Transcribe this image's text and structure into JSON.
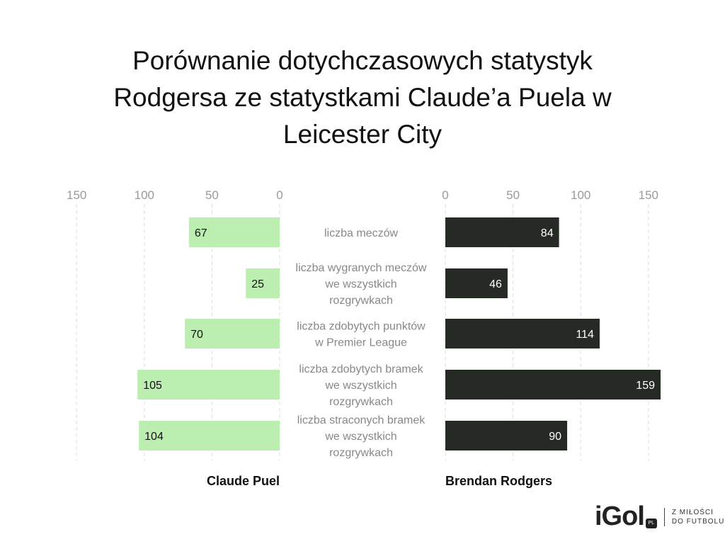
{
  "title": "Porównanie dotychczasowych statystyk Rodgersa ze statystkami Claude’a Puela w Leicester City",
  "logo": {
    "brand": "iGol",
    "suffix": "PL",
    "tagline_1": "Z MIŁOŚCI",
    "tagline_2": "DO FUTBOLU"
  },
  "chart_data": {
    "type": "bar",
    "title": "Porównanie dotychczasowych statystyk Rodgersa ze statystkami Claude’a Puela w Leicester City",
    "categories": [
      [
        "liczba meczów"
      ],
      [
        "liczba wygranych meczów",
        "we wszystkich",
        "rozgrywkach"
      ],
      [
        "liczba zdobytych punktów",
        "w Premier League"
      ],
      [
        "liczba zdobytych bramek",
        "we wszystkich",
        "rozgrywkach"
      ],
      [
        "liczba straconych bramek",
        "we wszystkich",
        "rozgrywkach"
      ]
    ],
    "series": [
      {
        "name": "Claude Puel",
        "color": "#bdeeb1",
        "values": [
          67,
          25,
          70,
          105,
          104
        ]
      },
      {
        "name": "Brendan Rodgers",
        "color": "#262a25",
        "values": [
          84,
          46,
          114,
          159,
          90
        ]
      }
    ],
    "ticks": [
      0,
      50,
      100,
      150
    ],
    "xlim": [
      0,
      160
    ],
    "grid": true
  }
}
